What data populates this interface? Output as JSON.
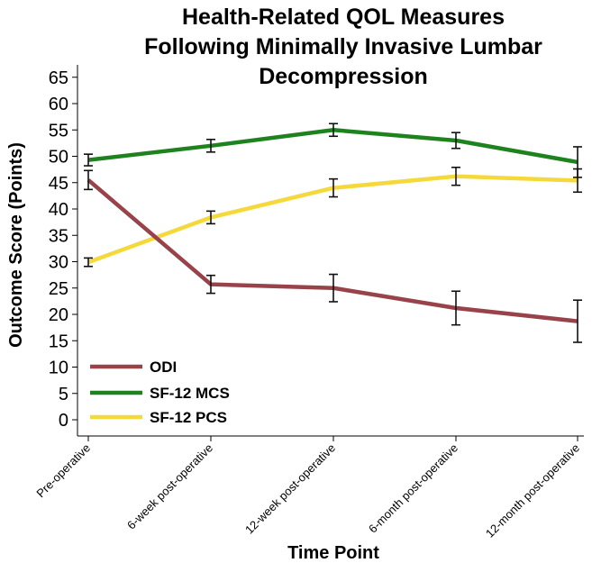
{
  "chart_data": {
    "type": "line",
    "title_lines": [
      "Health-Related QOL Measures",
      "Following Minimally Invasive Lumbar",
      "Decompression"
    ],
    "xlabel": "Time Point",
    "ylabel": "Outcome Score (Points)",
    "categories": [
      "Pre-operative",
      "6-week post-operative",
      "12-week post-operative",
      "6-month post-operative",
      "12-month post-operative"
    ],
    "ylim": [
      0,
      65
    ],
    "yticks": [
      0,
      5,
      10,
      15,
      20,
      25,
      30,
      35,
      40,
      45,
      50,
      55,
      60,
      65
    ],
    "legend_position": "bottom-left",
    "series": [
      {
        "name": "ODI",
        "color": "#98434a",
        "values": [
          45.5,
          25.7,
          25.0,
          21.2,
          18.7
        ],
        "errors": [
          1.8,
          1.7,
          2.6,
          3.2,
          4.0
        ]
      },
      {
        "name": "SF-12 MCS",
        "color": "#1e821e",
        "values": [
          49.3,
          52.0,
          55.0,
          53.0,
          48.9
        ],
        "errors": [
          1.1,
          1.2,
          1.2,
          1.5,
          2.9
        ]
      },
      {
        "name": "SF-12 PCS",
        "color": "#f5d93a",
        "values": [
          29.9,
          38.4,
          44.0,
          46.2,
          45.4
        ],
        "errors": [
          0.8,
          1.2,
          1.7,
          1.7,
          2.2
        ]
      }
    ]
  }
}
